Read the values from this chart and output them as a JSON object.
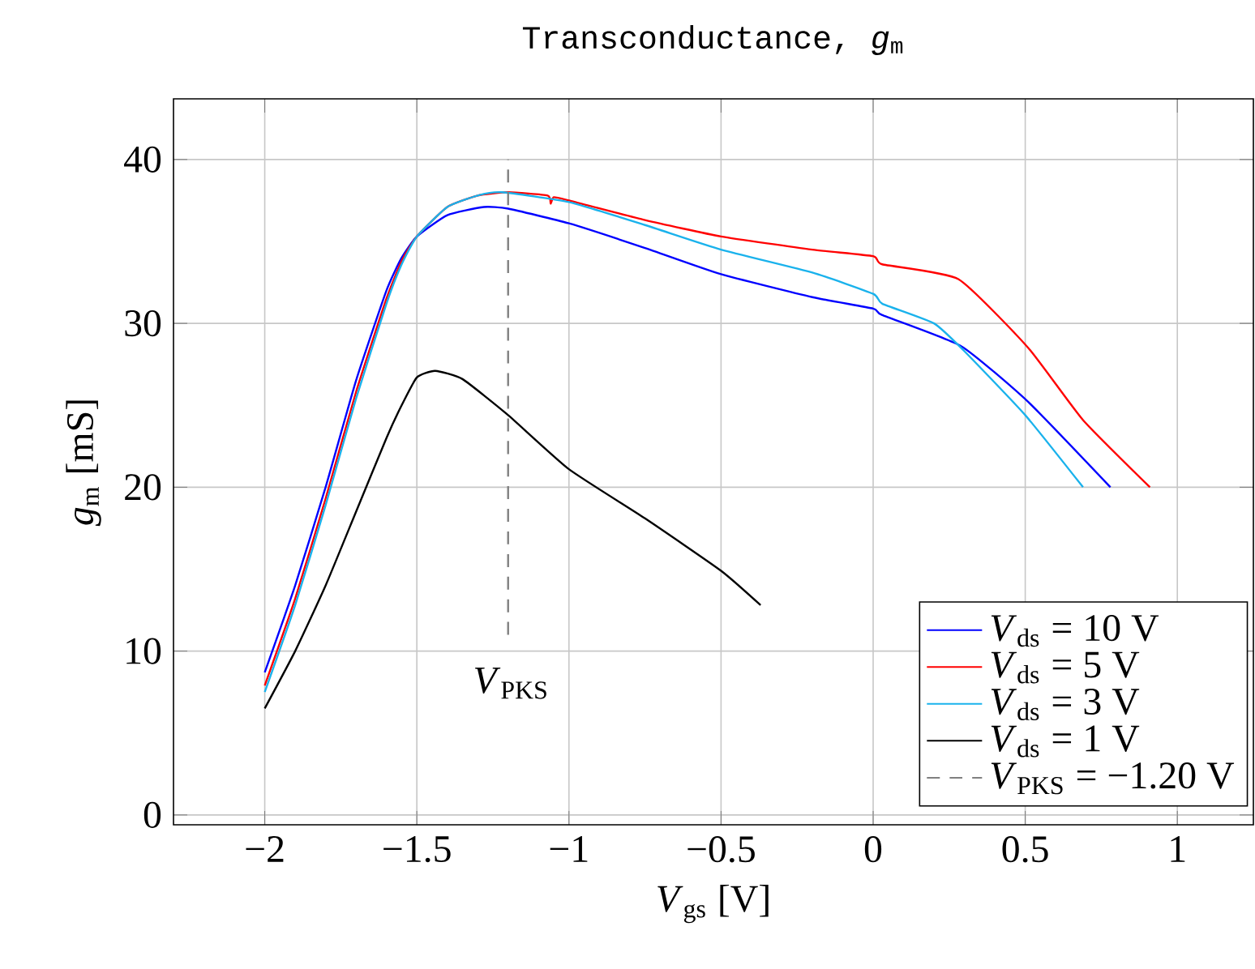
{
  "chart_data": {
    "type": "line",
    "title": "Transconductance, *g*$_{m}$",
    "xlabel": "*V*$_{gs}$ [V]",
    "ylabel": "*g*$_{m}$ [mS]",
    "xlim": [
      -2.3,
      1.25
    ],
    "ylim": [
      -0.6,
      43.7
    ],
    "xticks": [
      {
        "value": -2,
        "label": "−2"
      },
      {
        "value": -1.5,
        "label": "−1.5"
      },
      {
        "value": -1,
        "label": "−1"
      },
      {
        "value": -0.5,
        "label": "−0.5"
      },
      0,
      0.5,
      1
    ],
    "yticks": [
      0,
      10,
      20,
      30,
      40
    ],
    "grid": true,
    "legend": "bottom right",
    "line_style": "solid",
    "series": [
      {
        "name": "*V*$_{ds}$ = 10 V",
        "color": "#0000ff",
        "x": [
          -2,
          -1.9,
          -1.8,
          -1.7,
          -1.6,
          -1.55,
          -1.5,
          -1.4,
          -1.28,
          -1.2,
          -1,
          -0.75,
          -0.5,
          -0.2,
          0,
          0.03,
          0.29,
          0.51,
          0.78
        ],
        "values": [
          8.7,
          14,
          20,
          26.5,
          32,
          34,
          35.3,
          36.6,
          37.1,
          37,
          36.1,
          34.6,
          33.0,
          31.6,
          30.9,
          30.5,
          28.6,
          25.2,
          20
        ]
      },
      {
        "name": "*V*$_{ds}$ = 5 V",
        "color": "#ff0000",
        "x": [
          -2,
          -1.9,
          -1.8,
          -1.7,
          -1.6,
          -1.55,
          -1.5,
          -1.4,
          -1.3,
          -1.2,
          -1.07,
          -1.06,
          -1.05,
          -1,
          -0.75,
          -0.5,
          -0.2,
          0,
          0.03,
          0.28,
          0.51,
          0.69,
          0.91
        ],
        "values": [
          7.9,
          13.2,
          19.3,
          25.8,
          31.5,
          33.8,
          35.3,
          37.1,
          37.8,
          38.0,
          37.8,
          37.3,
          37.7,
          37.5,
          36.3,
          35.3,
          34.5,
          34.1,
          33.6,
          32.7,
          28.5,
          24.1,
          20
        ]
      },
      {
        "name": "*V*$_{ds}$ = 3 V",
        "color": "#1ab2ec",
        "x": [
          -2,
          -1.9,
          -1.8,
          -1.7,
          -1.6,
          -1.55,
          -1.5,
          -1.4,
          -1.3,
          -1.22,
          -1,
          -0.75,
          -0.5,
          -0.2,
          0,
          0.03,
          0.2,
          0.3,
          0.5,
          0.69
        ],
        "values": [
          7.5,
          12.8,
          18.9,
          25.4,
          31.2,
          33.6,
          35.3,
          37.1,
          37.8,
          38.0,
          37.4,
          36.0,
          34.5,
          33.1,
          31.8,
          31.2,
          30.0,
          28.3,
          24.4,
          20
        ]
      },
      {
        "name": "*V*$_{ds}$ = 1 V",
        "color": "#000000",
        "x": [
          -2,
          -1.9,
          -1.8,
          -1.7,
          -1.6,
          -1.55,
          -1.5,
          -1.44,
          -1.35,
          -1.2,
          -1,
          -0.75,
          -0.5,
          -0.37
        ],
        "values": [
          6.5,
          10,
          14,
          18.5,
          23,
          25,
          26.7,
          27.1,
          26.6,
          24.4,
          21.1,
          18.1,
          14.9,
          12.8
        ]
      },
      {
        "name": "*V*$_{PKS}$ = −1.20 V",
        "color": "#808080",
        "line_style": "dashed",
        "x": [
          -1.2,
          -1.2
        ],
        "values": [
          11,
          40
        ]
      }
    ],
    "annotations": [
      "*V*$_{PKS}$"
    ]
  }
}
